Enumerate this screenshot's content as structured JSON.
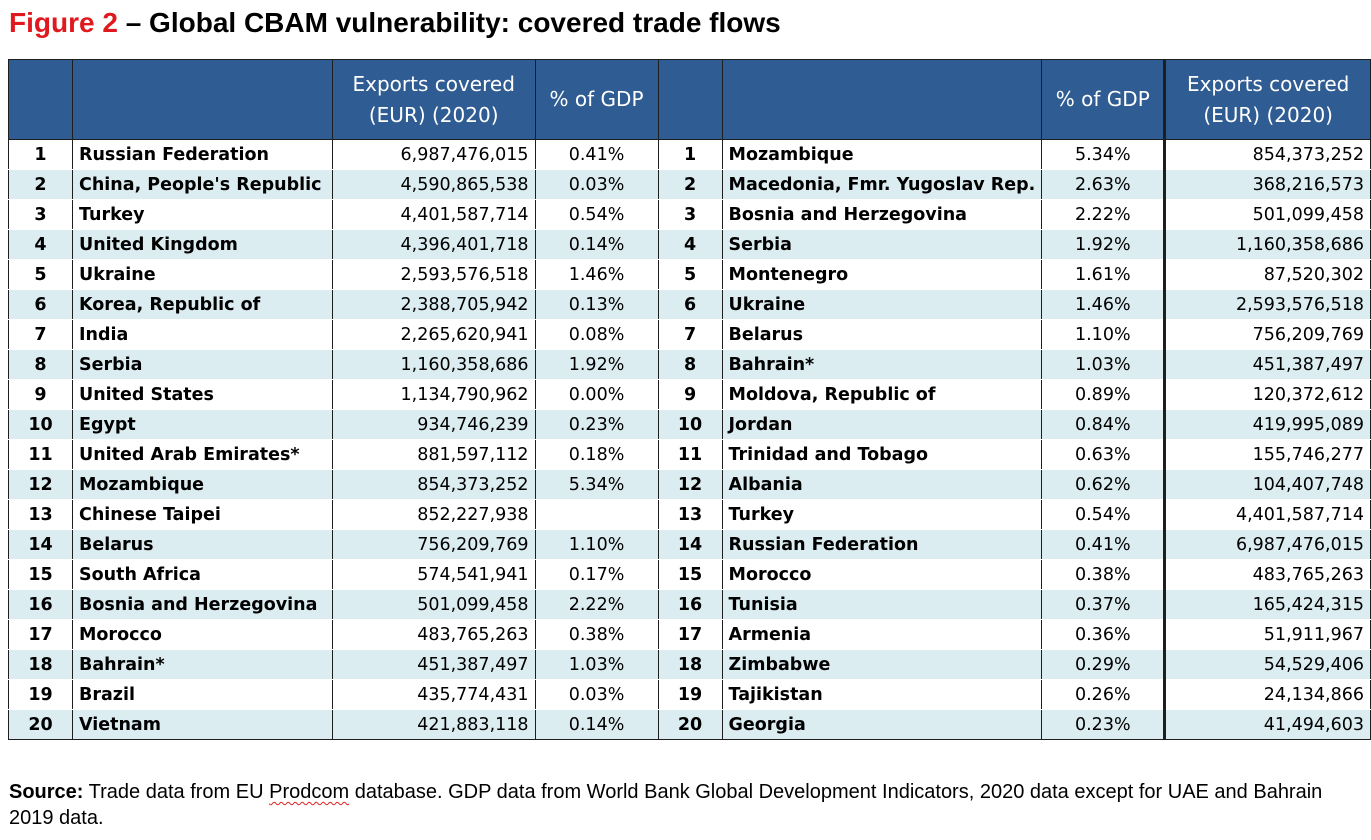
{
  "title": {
    "figure": "Figure 2",
    "rest": " – Global CBAM vulnerability: covered trade flows"
  },
  "table": {
    "headers": {
      "rank_left": "",
      "name_left": "",
      "exports_left": "Exports covered (EUR) (2020)",
      "gdp_left": "% of GDP",
      "rank_right": "",
      "name_right": "",
      "gdp_right": "% of GDP",
      "exports_right": "Exports covered (EUR) (2020)"
    },
    "left": [
      {
        "rank": "1",
        "country": "Russian Federation",
        "exports": "6,987,476,015",
        "gdp": "0.41%"
      },
      {
        "rank": "2",
        "country": "China, People's Republic",
        "exports": "4,590,865,538",
        "gdp": "0.03%"
      },
      {
        "rank": "3",
        "country": "Turkey",
        "exports": "4,401,587,714",
        "gdp": "0.54%"
      },
      {
        "rank": "4",
        "country": "United Kingdom",
        "exports": "4,396,401,718",
        "gdp": "0.14%"
      },
      {
        "rank": "5",
        "country": "Ukraine",
        "exports": "2,593,576,518",
        "gdp": "1.46%"
      },
      {
        "rank": "6",
        "country": "Korea, Republic of",
        "exports": "2,388,705,942",
        "gdp": "0.13%"
      },
      {
        "rank": "7",
        "country": "India",
        "exports": "2,265,620,941",
        "gdp": "0.08%"
      },
      {
        "rank": "8",
        "country": "Serbia",
        "exports": "1,160,358,686",
        "gdp": "1.92%"
      },
      {
        "rank": "9",
        "country": "United States",
        "exports": "1,134,790,962",
        "gdp": "0.00%"
      },
      {
        "rank": "10",
        "country": "Egypt",
        "exports": "934,746,239",
        "gdp": "0.23%"
      },
      {
        "rank": "11",
        "country": "United Arab Emirates*",
        "exports": "881,597,112",
        "gdp": "0.18%"
      },
      {
        "rank": "12",
        "country": "Mozambique",
        "exports": "854,373,252",
        "gdp": "5.34%"
      },
      {
        "rank": "13",
        "country": "Chinese Taipei",
        "exports": "852,227,938",
        "gdp": ""
      },
      {
        "rank": "14",
        "country": "Belarus",
        "exports": "756,209,769",
        "gdp": "1.10%"
      },
      {
        "rank": "15",
        "country": "South Africa",
        "exports": "574,541,941",
        "gdp": "0.17%"
      },
      {
        "rank": "16",
        "country": "Bosnia and Herzegovina",
        "exports": "501,099,458",
        "gdp": "2.22%"
      },
      {
        "rank": "17",
        "country": "Morocco",
        "exports": "483,765,263",
        "gdp": "0.38%"
      },
      {
        "rank": "18",
        "country": "Bahrain*",
        "exports": "451,387,497",
        "gdp": "1.03%"
      },
      {
        "rank": "19",
        "country": "Brazil",
        "exports": "435,774,431",
        "gdp": "0.03%"
      },
      {
        "rank": "20",
        "country": "Vietnam",
        "exports": "421,883,118",
        "gdp": "0.14%"
      }
    ],
    "right": [
      {
        "rank": "1",
        "country": "Mozambique",
        "gdp": "5.34%",
        "exports": "854,373,252"
      },
      {
        "rank": "2",
        "country": "Macedonia, Fmr. Yugoslav Rep.",
        "gdp": "2.63%",
        "exports": "368,216,573"
      },
      {
        "rank": "3",
        "country": "Bosnia and Herzegovina",
        "gdp": "2.22%",
        "exports": "501,099,458"
      },
      {
        "rank": "4",
        "country": "Serbia",
        "gdp": "1.92%",
        "exports": "1,160,358,686"
      },
      {
        "rank": "5",
        "country": "Montenegro",
        "gdp": "1.61%",
        "exports": "87,520,302"
      },
      {
        "rank": "6",
        "country": "Ukraine",
        "gdp": "1.46%",
        "exports": "2,593,576,518"
      },
      {
        "rank": "7",
        "country": "Belarus",
        "gdp": "1.10%",
        "exports": "756,209,769"
      },
      {
        "rank": "8",
        "country": "Bahrain*",
        "gdp": "1.03%",
        "exports": "451,387,497"
      },
      {
        "rank": "9",
        "country": "Moldova, Republic of",
        "gdp": "0.89%",
        "exports": "120,372,612"
      },
      {
        "rank": "10",
        "country": "Jordan",
        "gdp": "0.84%",
        "exports": "419,995,089"
      },
      {
        "rank": "11",
        "country": "Trinidad and Tobago",
        "gdp": "0.63%",
        "exports": "155,746,277"
      },
      {
        "rank": "12",
        "country": "Albania",
        "gdp": "0.62%",
        "exports": "104,407,748"
      },
      {
        "rank": "13",
        "country": "Turkey",
        "gdp": "0.54%",
        "exports": "4,401,587,714"
      },
      {
        "rank": "14",
        "country": "Russian Federation",
        "gdp": "0.41%",
        "exports": "6,987,476,015"
      },
      {
        "rank": "15",
        "country": "Morocco",
        "gdp": "0.38%",
        "exports": "483,765,263"
      },
      {
        "rank": "16",
        "country": "Tunisia",
        "gdp": "0.37%",
        "exports": "165,424,315"
      },
      {
        "rank": "17",
        "country": "Armenia",
        "gdp": "0.36%",
        "exports": "51,911,967"
      },
      {
        "rank": "18",
        "country": "Zimbabwe",
        "gdp": "0.29%",
        "exports": "54,529,406"
      },
      {
        "rank": "19",
        "country": "Tajikistan",
        "gdp": "0.26%",
        "exports": "24,134,866"
      },
      {
        "rank": "20",
        "country": "Georgia",
        "gdp": "0.23%",
        "exports": "41,494,603"
      }
    ]
  },
  "source": {
    "label": "Source:",
    "text_before": " Trade data from EU ",
    "flagged_word": "Prodcom",
    "text_after": " database. GDP data from World Bank Global Development Indicators, 2020 data except for UAE and Bahrain 2019 data."
  },
  "colors": {
    "title_figure": "#e0191f",
    "header_bg": "#2f5c92",
    "header_text": "#ffffff",
    "alt_row_bg": "#dcedf2"
  }
}
